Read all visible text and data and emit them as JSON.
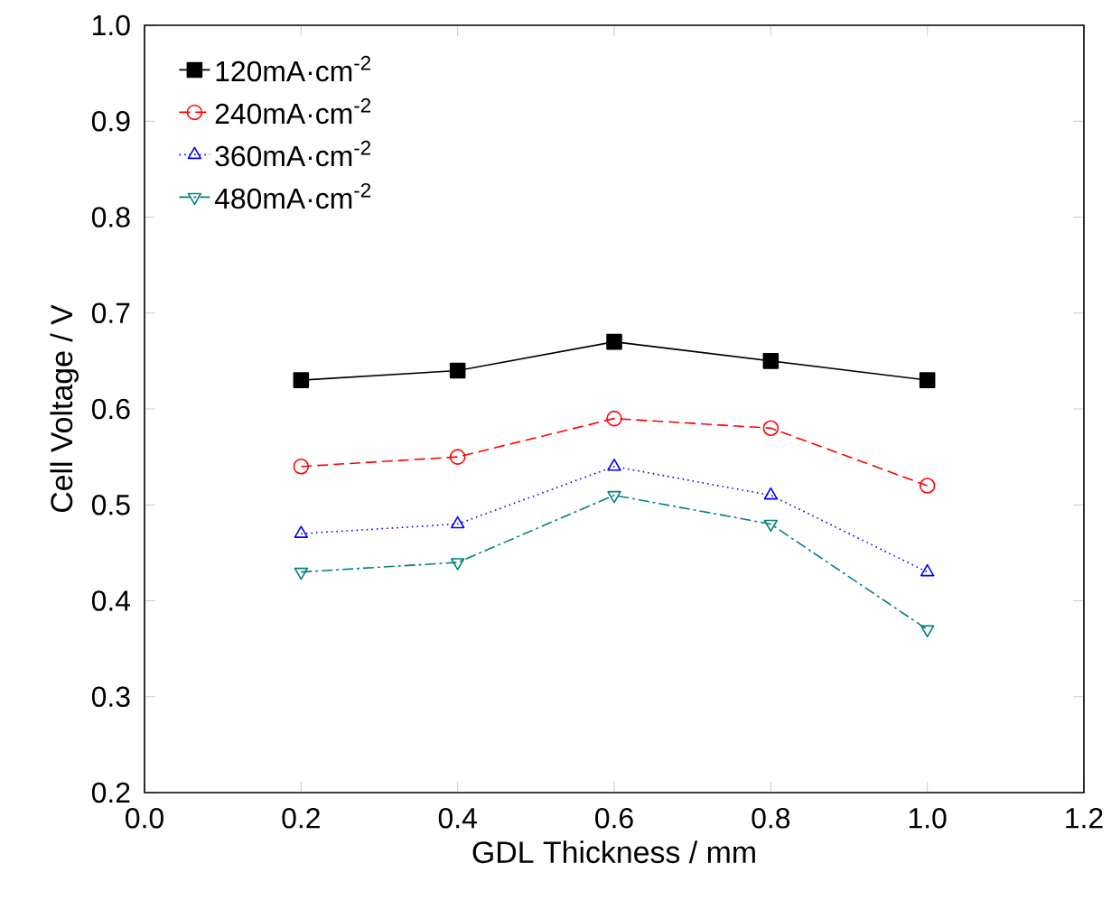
{
  "chart_data": {
    "type": "line",
    "xlabel": "GDL Thickness / mm",
    "ylabel": "Cell Voltage / V",
    "x": [
      0.2,
      0.4,
      0.6,
      0.8,
      1.0
    ],
    "series": [
      {
        "name": "120mA·cm$^{-2}$",
        "color": "#000000",
        "marker": "square",
        "line_style": "solid",
        "values": [
          0.63,
          0.64,
          0.67,
          0.65,
          0.63
        ]
      },
      {
        "name": "240mA·cm$^{-2}$",
        "color": "#ff0000",
        "marker": "circle",
        "line_style": "dashed",
        "values": [
          0.54,
          0.55,
          0.59,
          0.58,
          0.52
        ]
      },
      {
        "name": "360mA·cm$^{-2}$",
        "color": "#0000ff",
        "marker": "triangle",
        "line_style": "dotted",
        "values": [
          0.47,
          0.48,
          0.54,
          0.51,
          0.43
        ]
      },
      {
        "name": "480mA·cm$^{-2}$",
        "color": "#008080",
        "marker": "triangle-down",
        "line_style": "dashdot",
        "values": [
          0.43,
          0.44,
          0.51,
          0.48,
          0.37
        ]
      }
    ],
    "xlim": [
      0.0,
      1.2
    ],
    "xticks": [
      {
        "value": 0.0,
        "label": "0.0"
      },
      {
        "value": 0.2,
        "label": "0.2"
      },
      {
        "value": 0.4,
        "label": "0.4"
      },
      {
        "value": 0.6,
        "label": "0.6"
      },
      {
        "value": 0.8,
        "label": "0.8"
      },
      {
        "value": 1.0,
        "label": "1.0"
      },
      {
        "value": 1.2,
        "label": "1.2"
      }
    ],
    "ylim": [
      0.2,
      1.0
    ],
    "yticks": [
      {
        "value": 0.2,
        "label": "0.2"
      },
      {
        "value": 0.3,
        "label": "0.3"
      },
      {
        "value": 0.4,
        "label": "0.4"
      },
      {
        "value": 0.5,
        "label": "0.5"
      },
      {
        "value": 0.6,
        "label": "0.6"
      },
      {
        "value": 0.7,
        "label": "0.7"
      },
      {
        "value": 0.8,
        "label": "0.8"
      },
      {
        "value": 0.9,
        "label": "0.9"
      },
      {
        "value": 1.0,
        "label": "1.0"
      }
    ],
    "grid": false,
    "legend": "top left"
  }
}
